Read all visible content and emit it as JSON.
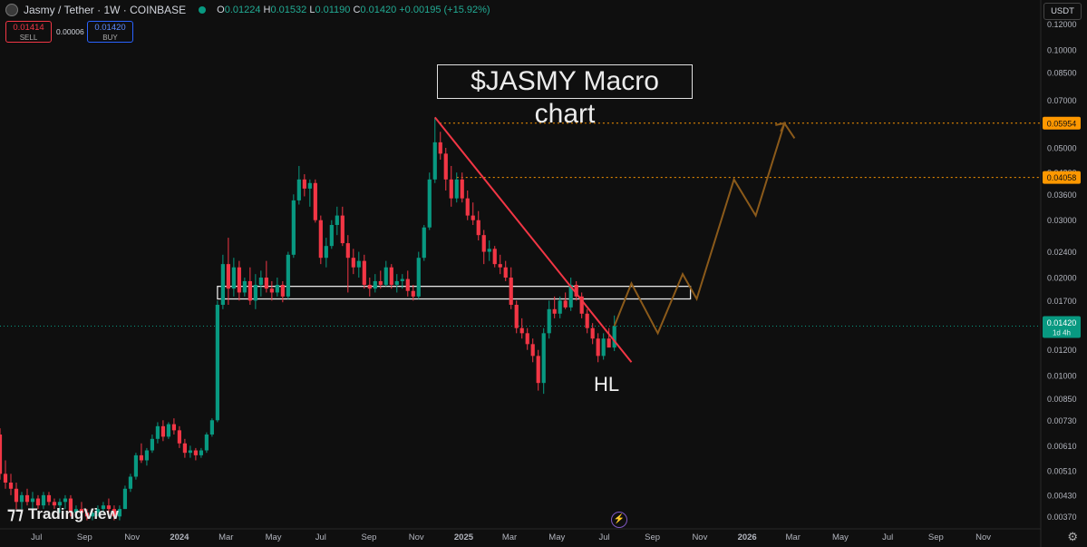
{
  "header": {
    "symbol": "Jasmy / Tether · 1W · COINBASE",
    "ohlc": {
      "o_label": "O",
      "o": "0.01224",
      "h_label": "H",
      "h": "0.01532",
      "l_label": "L",
      "l": "0.01190",
      "c_label": "C",
      "c": "0.01420",
      "change": "+0.00195 (+15.92%)"
    }
  },
  "trade": {
    "sell_price": "0.01414",
    "sell_label": "SELL",
    "spread": "0.00006",
    "buy_price": "0.01420",
    "buy_label": "BUY"
  },
  "currency_button": "USDT",
  "branding": "TradingView",
  "colors": {
    "up": "#089981",
    "down": "#f23645",
    "trendline": "#f23645",
    "projection": "#8b5a1a",
    "level": "#ff9800",
    "price_tag": "#089981"
  },
  "chart_data": {
    "type": "candlestick",
    "title": "$JASMY Macro chart",
    "y_scale": "log",
    "ylim": [
      0.0035,
      0.135
    ],
    "yticks": [
      "0.12000",
      "0.10000",
      "0.08500",
      "0.07000",
      "0.05000",
      "0.04200",
      "0.03600",
      "0.03000",
      "0.02400",
      "0.02000",
      "0.01700",
      "0.01200",
      "0.01000",
      "0.00850",
      "0.00730",
      "0.00610",
      "0.00510",
      "0.00430",
      "0.00370"
    ],
    "xticks": [
      "Jul",
      "Sep",
      "Nov",
      "2024",
      "Mar",
      "May",
      "Jul",
      "Sep",
      "Nov",
      "2025",
      "Mar",
      "May",
      "Jul",
      "Sep",
      "Nov",
      "2026",
      "Mar",
      "May",
      "Jul",
      "Sep",
      "Nov"
    ],
    "xtick_bold": [
      "2024",
      "2025",
      "2026"
    ],
    "time_axis": {
      "start": "2023-05-15",
      "end": "2026-12-31"
    },
    "candles": [
      [
        "2023-05-15",
        0.0066,
        0.0069,
        0.0048,
        0.005
      ],
      [
        "2023-05-22",
        0.005,
        0.0055,
        0.0045,
        0.0047
      ],
      [
        "2023-05-29",
        0.0047,
        0.005,
        0.0043,
        0.0045
      ],
      [
        "2023-06-05",
        0.0045,
        0.0047,
        0.0039,
        0.0041
      ],
      [
        "2023-06-12",
        0.0041,
        0.0044,
        0.0039,
        0.0043
      ],
      [
        "2023-06-19",
        0.0043,
        0.0045,
        0.004,
        0.0041
      ],
      [
        "2023-06-26",
        0.0041,
        0.0044,
        0.0039,
        0.0042
      ],
      [
        "2023-07-03",
        0.0042,
        0.0043,
        0.0039,
        0.004
      ],
      [
        "2023-07-10",
        0.004,
        0.0044,
        0.0039,
        0.0043
      ],
      [
        "2023-07-17",
        0.0043,
        0.0044,
        0.004,
        0.0041
      ],
      [
        "2023-07-24",
        0.0041,
        0.0042,
        0.0039,
        0.004
      ],
      [
        "2023-07-31",
        0.004,
        0.0042,
        0.0038,
        0.0041
      ],
      [
        "2023-08-07",
        0.0041,
        0.0043,
        0.0039,
        0.0042
      ],
      [
        "2023-08-14",
        0.0042,
        0.0043,
        0.0037,
        0.0038
      ],
      [
        "2023-08-21",
        0.0038,
        0.004,
        0.0037,
        0.0039
      ],
      [
        "2023-08-28",
        0.0039,
        0.0041,
        0.0037,
        0.0038
      ],
      [
        "2023-09-04",
        0.0038,
        0.0039,
        0.0036,
        0.0037
      ],
      [
        "2023-09-11",
        0.0037,
        0.0039,
        0.0036,
        0.0038
      ],
      [
        "2023-09-18",
        0.0038,
        0.004,
        0.0037,
        0.0039
      ],
      [
        "2023-09-25",
        0.0039,
        0.0041,
        0.0038,
        0.004
      ],
      [
        "2023-10-02",
        0.004,
        0.0042,
        0.0038,
        0.0039
      ],
      [
        "2023-10-09",
        0.0039,
        0.004,
        0.0036,
        0.0037
      ],
      [
        "2023-10-16",
        0.0037,
        0.004,
        0.0036,
        0.0039
      ],
      [
        "2023-10-23",
        0.0039,
        0.0046,
        0.0039,
        0.0045
      ],
      [
        "2023-10-30",
        0.0045,
        0.005,
        0.0044,
        0.0049
      ],
      [
        "2023-11-06",
        0.0049,
        0.0058,
        0.0048,
        0.0057
      ],
      [
        "2023-11-13",
        0.0057,
        0.0062,
        0.0054,
        0.0055
      ],
      [
        "2023-11-20",
        0.0055,
        0.006,
        0.0053,
        0.0059
      ],
      [
        "2023-11-27",
        0.0059,
        0.0066,
        0.0058,
        0.0064
      ],
      [
        "2023-12-04",
        0.0064,
        0.0072,
        0.0062,
        0.007
      ],
      [
        "2023-12-11",
        0.007,
        0.0073,
        0.0063,
        0.0065
      ],
      [
        "2023-12-18",
        0.0065,
        0.0072,
        0.0064,
        0.0071
      ],
      [
        "2023-12-25",
        0.0071,
        0.0074,
        0.0066,
        0.0068
      ],
      [
        "2024-01-01",
        0.0068,
        0.007,
        0.006,
        0.0062
      ],
      [
        "2024-01-08",
        0.0062,
        0.0064,
        0.0056,
        0.0058
      ],
      [
        "2024-01-15",
        0.0058,
        0.0061,
        0.0056,
        0.0059
      ],
      [
        "2024-01-22",
        0.0059,
        0.006,
        0.0055,
        0.0057
      ],
      [
        "2024-01-29",
        0.0057,
        0.006,
        0.0056,
        0.0059
      ],
      [
        "2024-02-05",
        0.0059,
        0.0067,
        0.0058,
        0.0066
      ],
      [
        "2024-02-12",
        0.0066,
        0.0074,
        0.0065,
        0.0073
      ],
      [
        "2024-02-19",
        0.0073,
        0.017,
        0.0072,
        0.0165
      ],
      [
        "2024-02-26",
        0.0165,
        0.0235,
        0.016,
        0.022
      ],
      [
        "2024-03-04",
        0.022,
        0.0265,
        0.0165,
        0.0185
      ],
      [
        "2024-03-11",
        0.0185,
        0.023,
        0.0175,
        0.0215
      ],
      [
        "2024-03-18",
        0.0215,
        0.0225,
        0.017,
        0.018
      ],
      [
        "2024-03-25",
        0.018,
        0.02,
        0.0175,
        0.0195
      ],
      [
        "2024-04-01",
        0.0195,
        0.0215,
        0.0165,
        0.017
      ],
      [
        "2024-04-08",
        0.017,
        0.0205,
        0.016,
        0.019
      ],
      [
        "2024-04-15",
        0.019,
        0.021,
        0.0175,
        0.02
      ],
      [
        "2024-04-22",
        0.02,
        0.0225,
        0.018,
        0.0185
      ],
      [
        "2024-04-29",
        0.0185,
        0.0195,
        0.017,
        0.018
      ],
      [
        "2024-05-06",
        0.018,
        0.02,
        0.0175,
        0.019
      ],
      [
        "2024-05-13",
        0.019,
        0.0195,
        0.0168,
        0.0175
      ],
      [
        "2024-05-20",
        0.0175,
        0.024,
        0.0172,
        0.0235
      ],
      [
        "2024-05-27",
        0.0235,
        0.036,
        0.023,
        0.0345
      ],
      [
        "2024-06-03",
        0.0345,
        0.044,
        0.0335,
        0.04
      ],
      [
        "2024-06-10",
        0.04,
        0.0415,
        0.0355,
        0.0375
      ],
      [
        "2024-06-17",
        0.0375,
        0.04,
        0.033,
        0.039
      ],
      [
        "2024-06-24",
        0.039,
        0.04,
        0.0295,
        0.03
      ],
      [
        "2024-07-01",
        0.03,
        0.031,
        0.022,
        0.023
      ],
      [
        "2024-07-08",
        0.023,
        0.0265,
        0.0215,
        0.025
      ],
      [
        "2024-07-15",
        0.025,
        0.03,
        0.0245,
        0.029
      ],
      [
        "2024-07-22",
        0.029,
        0.033,
        0.027,
        0.031
      ],
      [
        "2024-07-29",
        0.031,
        0.033,
        0.025,
        0.0255
      ],
      [
        "2024-08-05",
        0.0255,
        0.027,
        0.018,
        0.023
      ],
      [
        "2024-08-12",
        0.023,
        0.0245,
        0.0205,
        0.0215
      ],
      [
        "2024-08-19",
        0.0215,
        0.024,
        0.02,
        0.0225
      ],
      [
        "2024-08-26",
        0.0225,
        0.0235,
        0.0185,
        0.019
      ],
      [
        "2024-09-02",
        0.019,
        0.02,
        0.0175,
        0.0185
      ],
      [
        "2024-09-09",
        0.0185,
        0.0205,
        0.018,
        0.0195
      ],
      [
        "2024-09-16",
        0.0195,
        0.021,
        0.0185,
        0.019
      ],
      [
        "2024-09-23",
        0.019,
        0.0225,
        0.0188,
        0.0215
      ],
      [
        "2024-09-30",
        0.0215,
        0.022,
        0.0185,
        0.019
      ],
      [
        "2024-10-07",
        0.019,
        0.0205,
        0.018,
        0.0195
      ],
      [
        "2024-10-14",
        0.0195,
        0.0205,
        0.0185,
        0.0198
      ],
      [
        "2024-10-21",
        0.0198,
        0.021,
        0.0175,
        0.0182
      ],
      [
        "2024-10-28",
        0.0182,
        0.019,
        0.017,
        0.0175
      ],
      [
        "2024-11-04",
        0.0175,
        0.024,
        0.0172,
        0.023
      ],
      [
        "2024-11-11",
        0.023,
        0.029,
        0.0225,
        0.0285
      ],
      [
        "2024-11-18",
        0.0285,
        0.042,
        0.028,
        0.04
      ],
      [
        "2024-11-25",
        0.04,
        0.062,
        0.039,
        0.052
      ],
      [
        "2024-12-02",
        0.052,
        0.056,
        0.046,
        0.048
      ],
      [
        "2024-12-09",
        0.048,
        0.05,
        0.037,
        0.04
      ],
      [
        "2024-12-16",
        0.04,
        0.044,
        0.033,
        0.035
      ],
      [
        "2024-12-23",
        0.035,
        0.042,
        0.034,
        0.04
      ],
      [
        "2024-12-30",
        0.04,
        0.042,
        0.034,
        0.035
      ],
      [
        "2025-01-06",
        0.035,
        0.037,
        0.03,
        0.031
      ],
      [
        "2025-01-13",
        0.031,
        0.034,
        0.029,
        0.03
      ],
      [
        "2025-01-20",
        0.03,
        0.032,
        0.026,
        0.027
      ],
      [
        "2025-01-27",
        0.027,
        0.028,
        0.022,
        0.024
      ],
      [
        "2025-02-03",
        0.024,
        0.026,
        0.0225,
        0.0245
      ],
      [
        "2025-02-10",
        0.0245,
        0.025,
        0.0215,
        0.022
      ],
      [
        "2025-02-17",
        0.022,
        0.0235,
        0.0205,
        0.0215
      ],
      [
        "2025-02-24",
        0.0215,
        0.0225,
        0.0195,
        0.02
      ],
      [
        "2025-03-03",
        0.02,
        0.0215,
        0.016,
        0.0165
      ],
      [
        "2025-03-10",
        0.0165,
        0.017,
        0.0135,
        0.014
      ],
      [
        "2025-03-17",
        0.014,
        0.015,
        0.013,
        0.0135
      ],
      [
        "2025-03-24",
        0.0135,
        0.014,
        0.012,
        0.0125
      ],
      [
        "2025-03-31",
        0.0125,
        0.013,
        0.011,
        0.0115
      ],
      [
        "2025-04-07",
        0.0115,
        0.012,
        0.009,
        0.0095
      ],
      [
        "2025-04-14",
        0.0095,
        0.014,
        0.0088,
        0.0135
      ],
      [
        "2025-04-21",
        0.0135,
        0.017,
        0.013,
        0.016
      ],
      [
        "2025-04-28",
        0.016,
        0.0175,
        0.015,
        0.0155
      ],
      [
        "2025-05-05",
        0.0155,
        0.0175,
        0.015,
        0.017
      ],
      [
        "2025-05-12",
        0.017,
        0.018,
        0.016,
        0.0162
      ],
      [
        "2025-05-19",
        0.0162,
        0.02,
        0.0158,
        0.019
      ],
      [
        "2025-05-26",
        0.019,
        0.0195,
        0.017,
        0.0175
      ],
      [
        "2025-06-02",
        0.0175,
        0.018,
        0.015,
        0.0155
      ],
      [
        "2025-06-09",
        0.0155,
        0.016,
        0.0135,
        0.014
      ],
      [
        "2025-06-16",
        0.014,
        0.0145,
        0.0125,
        0.013
      ],
      [
        "2025-06-23",
        0.013,
        0.0135,
        0.011,
        0.0115
      ],
      [
        "2025-06-30",
        0.0115,
        0.0135,
        0.0112,
        0.013
      ],
      [
        "2025-07-07",
        0.013,
        0.014,
        0.0125,
        0.0122
      ],
      [
        "2025-07-14",
        0.0122,
        0.0153,
        0.0119,
        0.0142
      ]
    ],
    "trendline": [
      [
        "2024-11-25",
        0.062
      ],
      [
        "2025-08-05",
        0.011
      ]
    ],
    "zone": {
      "from": "2024-02-19",
      "to": "2025-10-20",
      "low": 0.0172,
      "high": 0.0188
    },
    "levels": [
      {
        "value": 0.05954,
        "label": "0.05954",
        "from": "2024-12-01"
      },
      {
        "value": 0.04058,
        "label": "0.04058",
        "from": "2024-12-23"
      }
    ],
    "projection": [
      [
        "2025-07-14",
        0.0142
      ],
      [
        "2025-08-05",
        0.0192
      ],
      [
        "2025-09-08",
        0.0135
      ],
      [
        "2025-10-10",
        0.0205
      ],
      [
        "2025-10-28",
        0.0172
      ],
      [
        "2025-12-15",
        0.04
      ],
      [
        "2026-01-12",
        0.031
      ],
      [
        "2026-02-18",
        0.0595
      ],
      [
        "2026-03-03",
        0.0535
      ]
    ],
    "current_price": {
      "value": 0.0142,
      "label": "0.01420",
      "countdown": "1d 4h"
    },
    "annotations": [
      {
        "text": "HL"
      }
    ]
  }
}
